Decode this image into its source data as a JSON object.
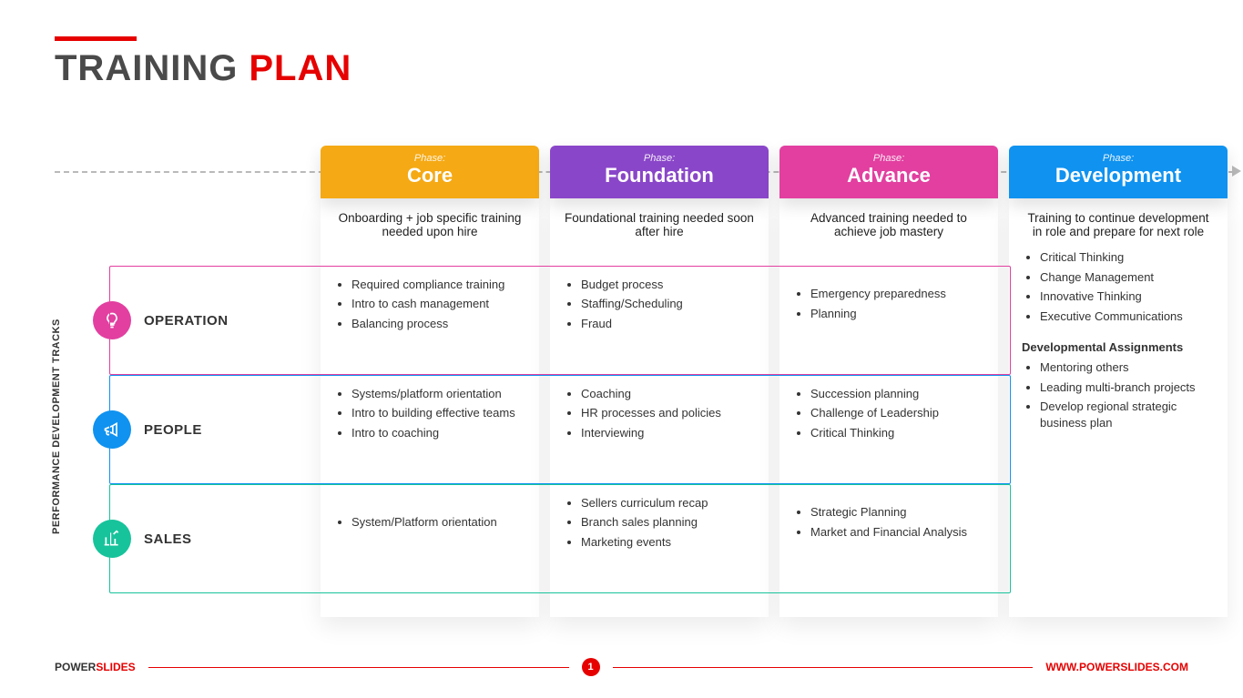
{
  "title": {
    "part1": "TRAINING",
    "part2": "PLAN"
  },
  "vertical_label": "PERFORMANCE DEVELOPMENT TRACKS",
  "colors": {
    "accent_red": "#e60000",
    "phase": {
      "core": "#f5a914",
      "foundation": "#8a46c9",
      "advance": "#e23fa0",
      "development": "#0f92f0"
    },
    "track_icon": {
      "operation": "#e23fa0",
      "people": "#0f92f0",
      "sales": "#17c39b"
    },
    "row_border": {
      "operation": "#e23fa0",
      "people": "#0f92f0",
      "sales": "#17c39b"
    }
  },
  "phases": {
    "label": "Phase:",
    "core": {
      "name": "Core",
      "desc": "Onboarding + job specific training needed upon hire"
    },
    "foundation": {
      "name": "Foundation",
      "desc": "Foundational training needed soon after hire"
    },
    "advance": {
      "name": "Advance",
      "desc": "Advanced training needed to achieve job mastery"
    },
    "development": {
      "name": "Development",
      "desc": "Training to continue development in role and prepare for next role"
    }
  },
  "tracks": {
    "operation": {
      "name": "OPERATION",
      "core": [
        "Required compliance training",
        "Intro to cash management",
        "Balancing process"
      ],
      "foundation": [
        "Budget process",
        "Staffing/Scheduling",
        "Fraud"
      ],
      "advance": [
        "Emergency preparedness",
        "Planning"
      ]
    },
    "people": {
      "name": "PEOPLE",
      "core": [
        "Systems/platform orientation",
        "Intro to building effective teams",
        "Intro to coaching"
      ],
      "foundation": [
        "Coaching",
        "HR processes and policies",
        "Interviewing"
      ],
      "advance": [
        "Succession planning",
        "Challenge of Leadership",
        "Critical Thinking"
      ]
    },
    "sales": {
      "name": "SALES",
      "core": [
        "System/Platform orientation"
      ],
      "foundation": [
        "Sellers curriculum recap",
        "Branch sales planning",
        "Marketing events"
      ],
      "advance": [
        "Strategic Planning",
        "Market and Financial Analysis"
      ]
    }
  },
  "development_column": {
    "items": [
      "Critical Thinking",
      "Change Management",
      "Innovative Thinking",
      "Executive Communications"
    ],
    "subhead": "Developmental Assignments",
    "assignments": [
      "Mentoring others",
      "Leading multi-branch projects",
      "Develop regional strategic business plan"
    ]
  },
  "footer": {
    "logo1": "POWER",
    "logo2": "SLIDES",
    "page": "1",
    "url": "WWW.POWERSLIDES.COM"
  }
}
